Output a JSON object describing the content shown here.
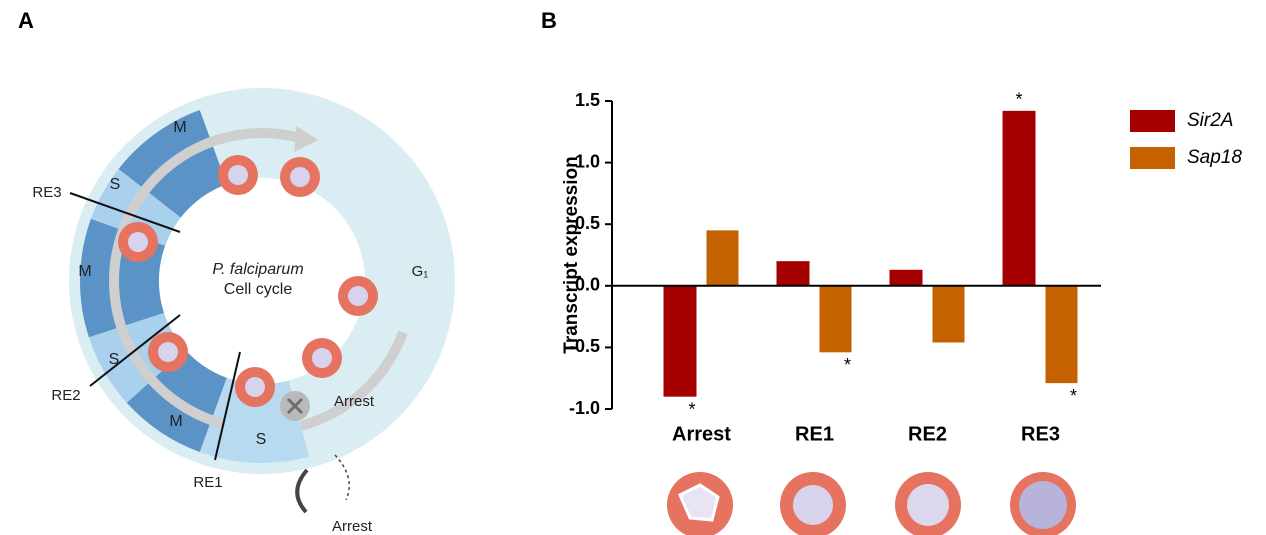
{
  "panel_a": {
    "label": "A",
    "center_title": "P. falciparum",
    "center_subtitle": "Cell cycle",
    "phases": [
      "M",
      "S",
      "M",
      "S",
      "M",
      "S"
    ],
    "g1": "G₁",
    "arrest": "Arrest",
    "markers": [
      "RE3",
      "RE2",
      "RE1"
    ],
    "legend_arrest": "Arrest"
  },
  "chart_data": {
    "type": "bar",
    "panel_label": "B",
    "y_label": "Transcript expression",
    "categories": [
      "Arrest",
      "RE1",
      "RE2",
      "RE3"
    ],
    "series": [
      {
        "name": "Sir2A",
        "color": "#a50000",
        "values": [
          -0.9,
          0.2,
          0.13,
          1.42
        ],
        "significance": [
          "*",
          null,
          null,
          "*"
        ]
      },
      {
        "name": "Sap18",
        "color": "#c46200",
        "values": [
          0.45,
          -0.54,
          -0.46,
          -0.79
        ],
        "significance": [
          null,
          "*",
          null,
          "*"
        ]
      }
    ],
    "ylim": [
      -1,
      1.5
    ],
    "yticks": [
      {
        "value": -1,
        "label": "-1.0"
      },
      -0.5,
      {
        "value": 0,
        "label": "0.0"
      },
      0.5,
      {
        "value": 1,
        "label": "1.0"
      },
      1.5
    ],
    "legend": "top-right"
  }
}
